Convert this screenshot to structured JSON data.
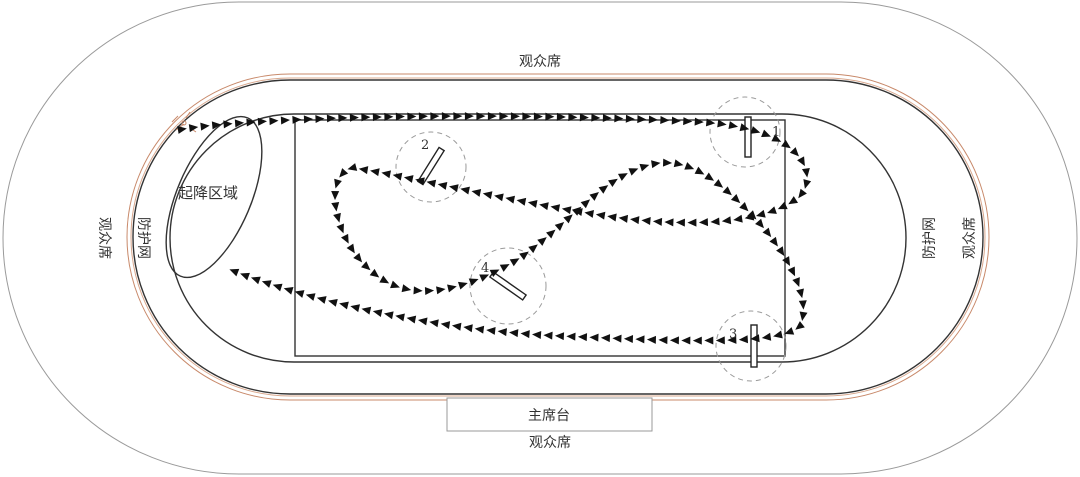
{
  "labels": {
    "stands_top": "观众席",
    "stands_bottom": "观众席",
    "stands_left": "观众席",
    "stands_right": "观众席",
    "fence_left": "防护网",
    "fence_right": "防护网",
    "main_stand": "主席台",
    "takeoff_zone": "起降区域"
  },
  "gates": [
    {
      "number": "1"
    },
    {
      "number": "2"
    },
    {
      "number": "3"
    },
    {
      "number": "4"
    }
  ],
  "colors": {
    "outline": "#333333",
    "outer_boundary": "#9a9a9a",
    "track_accent": "#c8896a",
    "gate_circle": "#9a9a9a",
    "path": "#111111"
  }
}
